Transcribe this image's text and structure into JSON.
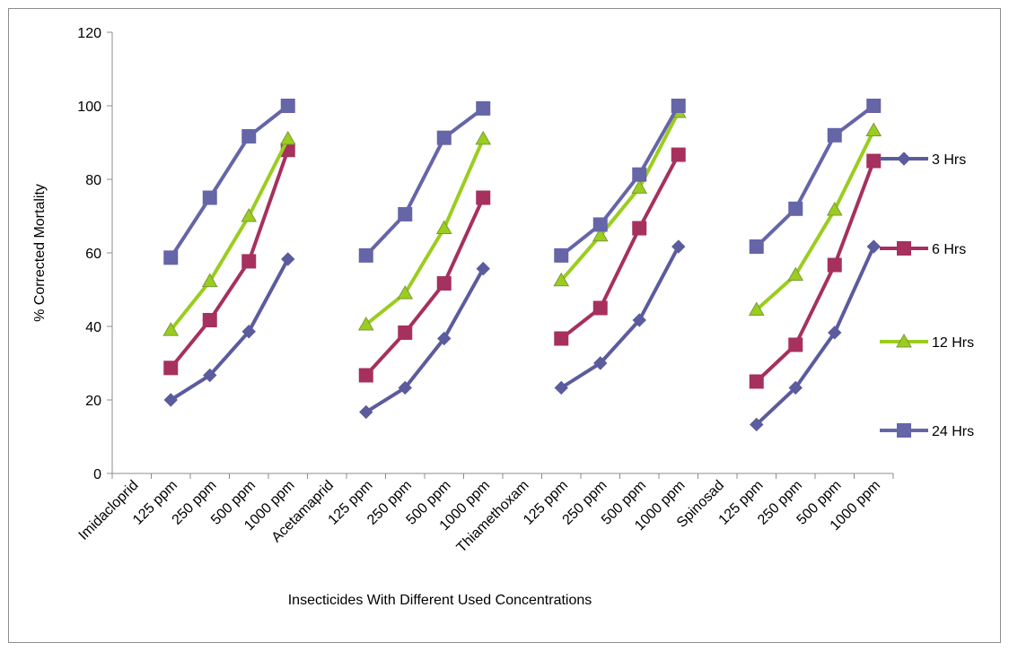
{
  "chart_data": {
    "type": "line",
    "ylabel": "% Corrected Mortality",
    "xlabel": "Insecticides With Different Used Concentrations",
    "ylim": [
      0,
      120
    ],
    "yticks": [
      0,
      20,
      40,
      60,
      80,
      100,
      120
    ],
    "categories": [
      "Imidacloprid",
      "125 ppm",
      "250 ppm",
      "500 ppm",
      "1000 ppm",
      "Acetamaprid",
      "125 ppm",
      "250 ppm",
      "500 ppm",
      "1000 ppm",
      "Thiamethoxam",
      "125 ppm",
      "250 ppm",
      "500 ppm",
      "1000 ppm",
      "Spinosad",
      "125 ppm",
      "250 ppm",
      "500 ppm",
      "1000 ppm"
    ],
    "legend_position": "right",
    "grid": false,
    "series": [
      {
        "name": "3 Hrs",
        "color": "#5b5b9e",
        "marker": "diamond",
        "values": [
          null,
          20,
          26.7,
          38.6,
          58.3,
          null,
          16.7,
          23.3,
          36.7,
          55.7,
          null,
          23.3,
          30,
          41.7,
          61.7,
          null,
          13.3,
          23.3,
          38.3,
          61.7
        ]
      },
      {
        "name": "6 Hrs",
        "color": "#a6305e",
        "marker": "square",
        "values": [
          null,
          28.7,
          41.7,
          57.7,
          88,
          null,
          26.7,
          38.3,
          51.7,
          75,
          null,
          36.7,
          45,
          66.7,
          86.7,
          null,
          25,
          35,
          56.7,
          85
        ]
      },
      {
        "name": "12 Hrs",
        "color": "#9acd1e",
        "marker": "triangle",
        "values": [
          null,
          39,
          52.3,
          70,
          91,
          null,
          40.5,
          49,
          66.7,
          91,
          null,
          52.5,
          64.7,
          77.7,
          98.3,
          null,
          44.5,
          54,
          71.7,
          93.3
        ]
      },
      {
        "name": "24 Hrs",
        "color": "#6565a8",
        "marker": "square",
        "values": [
          null,
          58.7,
          75,
          91.7,
          100,
          null,
          59.3,
          70.5,
          91.3,
          99.3,
          null,
          59.3,
          67.7,
          81.3,
          100,
          null,
          61.7,
          72,
          92,
          100
        ]
      }
    ]
  }
}
